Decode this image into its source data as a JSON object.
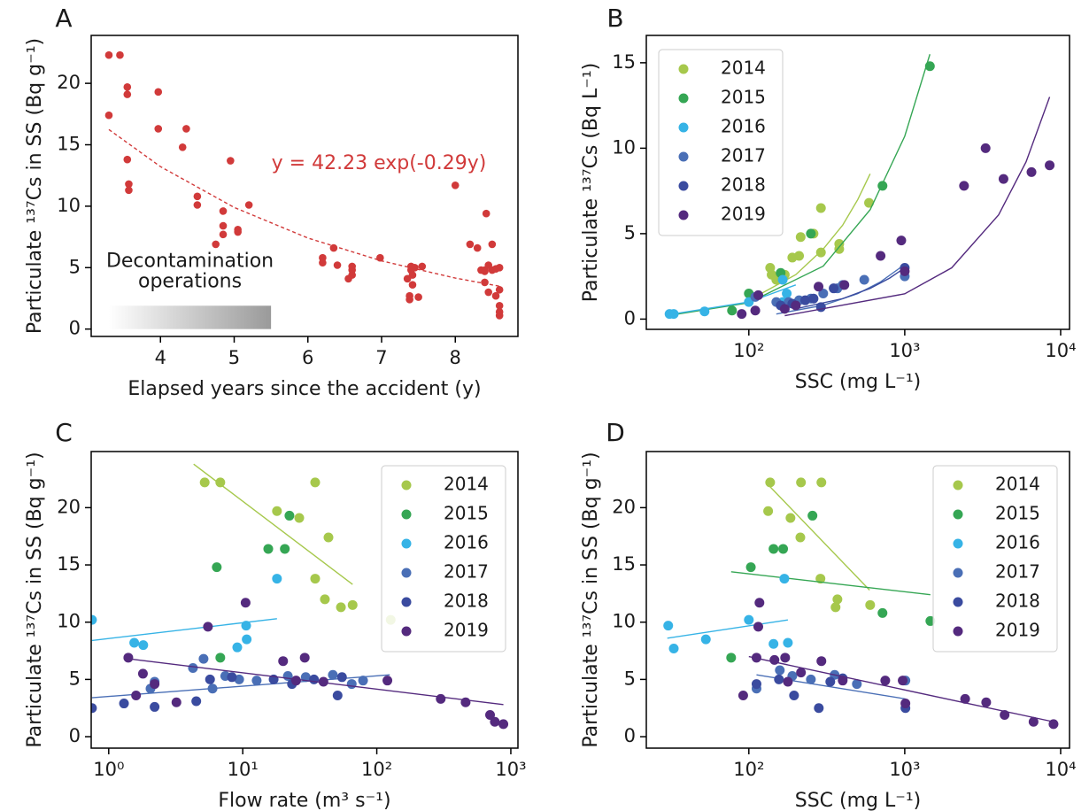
{
  "chart_data": [
    {
      "type": "scatter",
      "panel": "A",
      "xlabel": "Elapsed years since the accident (y)",
      "ylabel": "Particulate ¹³⁷Cs in SS (Bq g⁻¹)",
      "xscale": "linear",
      "xlim": [
        3.06,
        8.85
      ],
      "ylim": [
        -0.6,
        23.9
      ],
      "xticks": [
        4,
        5,
        6,
        7,
        8
      ],
      "yticks": [
        0,
        5,
        10,
        15,
        20
      ],
      "legend": null,
      "annotation": "y = 42.23 exp(-0.29y)",
      "shade": {
        "x": [
          3.3,
          5.5
        ],
        "y": [
          0,
          1.9
        ],
        "text": [
          "Decontamination",
          "operations"
        ]
      },
      "series": [
        {
          "color": "#d13a3a",
          "x": [
            3.3,
            3.45,
            3.3,
            3.55,
            3.55,
            3.55,
            3.57,
            3.57,
            3.97,
            3.97,
            4.3,
            4.35,
            4.5,
            4.5,
            4.75,
            4.85,
            4.85,
            4.85,
            4.95,
            5.05,
            5.05,
            5.2,
            6.2,
            6.2,
            6.35,
            6.4,
            6.55,
            6.6,
            6.6,
            6.6,
            6.98,
            7.35,
            7.38,
            7.38,
            7.4,
            7.4,
            7.42,
            7.42,
            7.45,
            7.5,
            7.55,
            8.0,
            8.2,
            8.3,
            8.35,
            8.4,
            8.4,
            8.4,
            8.42,
            8.45,
            8.45,
            8.5,
            8.5,
            8.55,
            8.6,
            8.6,
            8.6,
            8.6,
            8.6,
            8.55
          ],
          "values": [
            22.3,
            22.3,
            17.4,
            19.7,
            19.1,
            13.8,
            11.8,
            11.3,
            19.3,
            16.3,
            14.8,
            16.3,
            10.8,
            10.1,
            6.9,
            9.6,
            8.4,
            7.7,
            13.7,
            8.1,
            7.9,
            10.1,
            5.8,
            5.4,
            6.6,
            5.2,
            4.1,
            5.1,
            4.8,
            4.4,
            5.8,
            4.1,
            2.7,
            2.4,
            5.1,
            4.8,
            4.4,
            3.6,
            5.0,
            2.6,
            5.1,
            11.7,
            6.9,
            6.6,
            4.8,
            4.8,
            3.8,
            4.7,
            9.4,
            3.0,
            5.2,
            6.9,
            4.8,
            4.9,
            5.0,
            3.2,
            1.9,
            1.4,
            1.1,
            2.7
          ],
          "fit": {
            "dashed": true,
            "x": [
              3.3,
              4,
              5,
              6,
              7,
              8,
              8.6
            ],
            "values": [
              16.24,
              13.22,
              9.9,
              7.41,
              5.55,
              4.15,
              3.49
            ]
          }
        }
      ]
    },
    {
      "type": "scatter",
      "panel": "B",
      "xlabel": "SSC (mg L⁻¹)",
      "ylabel": "Particulate ¹³⁷Cs (Bq L⁻¹)",
      "xscale": "log",
      "xlim": [
        22,
        11400
      ],
      "ylim": [
        -0.6,
        16.6
      ],
      "xticks": [
        {
          "value": 100,
          "label": "10²"
        },
        {
          "value": 1000,
          "label": "10³"
        },
        {
          "value": 10000,
          "label": "10⁴"
        }
      ],
      "yticks": [
        0,
        5,
        10,
        15
      ],
      "legend": "upper left",
      "series": [
        {
          "name": "2014",
          "color": "#a6c84c",
          "x": [
            137,
            140,
            150,
            170,
            190,
            210,
            215,
            260,
            290,
            290,
            380,
            380,
            590
          ],
          "values": [
            3.0,
            2.6,
            2.3,
            2.6,
            3.6,
            3.7,
            4.8,
            5.0,
            6.5,
            3.9,
            4.1,
            4.4,
            6.8
          ],
          "fit": {
            "x": [
              100,
              200,
              300,
              400,
              500,
              600
            ],
            "values": [
              1.1,
              2.6,
              4.1,
              5.5,
              7.0,
              8.5
            ]
          }
        },
        {
          "name": "2015",
          "color": "#35a654",
          "x": [
            78,
            100,
            160,
            250,
            720,
            1450
          ],
          "values": [
            0.5,
            1.5,
            2.7,
            5.0,
            7.8,
            14.8
          ],
          "fit": {
            "x": [
              30,
              100,
              300,
              600,
              1000,
              1450
            ],
            "values": [
              0.2,
              0.96,
              3.1,
              6.4,
              10.7,
              15.5
            ]
          }
        },
        {
          "name": "2016",
          "color": "#36b3e6",
          "x": [
            31,
            33,
            52,
            100,
            165,
            175,
            165
          ],
          "values": [
            0.3,
            0.3,
            0.45,
            1.0,
            2.3,
            1.5,
            1.0
          ],
          "fit": {
            "x": [
              30,
              100,
              200
            ],
            "values": [
              0.25,
              1.0,
              2.0
            ]
          }
        },
        {
          "name": "2017",
          "color": "#4a6fb6",
          "x": [
            110,
            150,
            180,
            210,
            250,
            300,
            370,
            400,
            550,
            1000
          ],
          "values": [
            1.3,
            1.0,
            1.0,
            1.1,
            1.2,
            1.5,
            1.8,
            2.0,
            2.3,
            2.5
          ],
          "fit": {
            "x": [
              150,
              300,
              500,
              700,
              1000
            ],
            "values": [
              0.3,
              0.81,
              1.49,
              2.18,
              3.2
            ]
          }
        },
        {
          "name": "2018",
          "color": "#3a4b9f",
          "x": [
            160,
            190,
            230,
            260,
            290,
            350,
            1000
          ],
          "values": [
            0.8,
            0.9,
            1.1,
            1.2,
            0.7,
            1.8,
            3.0
          ],
          "fit": {
            "x": [
              200,
              400,
              600,
              800,
              1000
            ],
            "values": [
              0.6,
              1.2,
              1.8,
              2.4,
              3.0
            ]
          }
        },
        {
          "name": "2019",
          "color": "#542a7e",
          "x": [
            90,
            110,
            115,
            170,
            200,
            280,
            410,
            700,
            950,
            1000,
            2400,
            3300,
            4300,
            6500,
            8500
          ],
          "values": [
            0.3,
            0.5,
            1.4,
            0.6,
            0.8,
            1.9,
            2.0,
            3.7,
            4.6,
            2.8,
            7.8,
            10.0,
            8.2,
            8.6,
            9.0
          ],
          "fit": {
            "x": [
              170,
              1000,
              2000,
              4000,
              6000,
              8500
            ],
            "values": [
              0.2,
              1.48,
              3.0,
              6.1,
              9.2,
              13.0
            ]
          }
        }
      ]
    },
    {
      "type": "scatter",
      "panel": "C",
      "xlabel": "Flow rate (m³ s⁻¹)",
      "ylabel": "Particulate ¹³⁷Cs in SS (Bq g⁻¹)",
      "xscale": "log",
      "xlim": [
        0.74,
        1130
      ],
      "ylim": [
        -1.0,
        24.9
      ],
      "xticks": [
        {
          "value": 1,
          "label": "10⁰"
        },
        {
          "value": 10,
          "label": "10¹"
        },
        {
          "value": 100,
          "label": "10²"
        },
        {
          "value": 1000,
          "label": "10³"
        }
      ],
      "yticks": [
        0,
        5,
        10,
        15,
        20
      ],
      "legend": "upper right",
      "series": [
        {
          "name": "2014",
          "color": "#a6c84c",
          "x": [
            5.2,
            6.8,
            18,
            26.4,
            34.7,
            34.7,
            43.6,
            41,
            54,
            66,
            127
          ],
          "values": [
            22.2,
            22.2,
            19.7,
            19.1,
            22.2,
            13.8,
            17.4,
            12.0,
            11.3,
            11.5,
            10.2
          ],
          "fit": {
            "x": [
              4.3,
              66
            ],
            "values": [
              23.8,
              13.3
            ]
          }
        },
        {
          "name": "2015",
          "color": "#35a654",
          "x": [
            6.4,
            6.8,
            15.5,
            20.6,
            22.3
          ],
          "values": [
            14.8,
            6.9,
            16.4,
            16.4,
            19.3
          ]
        },
        {
          "name": "2016",
          "color": "#36b3e6",
          "x": [
            0.75,
            1.55,
            1.81,
            10.6,
            10.7,
            9.1,
            18
          ],
          "values": [
            10.2,
            8.2,
            8.0,
            9.7,
            8.5,
            7.8,
            13.8
          ],
          "fit": {
            "x": [
              0.75,
              18
            ],
            "values": [
              8.4,
              10.3
            ]
          }
        },
        {
          "name": "2017",
          "color": "#4a6fb6",
          "x": [
            2.05,
            2.2,
            4.25,
            5.1,
            5.95,
            7.4,
            9.4,
            12.7,
            21.7,
            29.5,
            47,
            65,
            79
          ],
          "values": [
            4.2,
            4.8,
            6.0,
            6.8,
            4.2,
            5.3,
            5.0,
            4.9,
            5.3,
            5.2,
            5.4,
            4.6,
            4.9
          ],
          "fit": {
            "x": [
              0.75,
              125
            ],
            "values": [
              3.4,
              5.4
            ]
          }
        },
        {
          "name": "2018",
          "color": "#3a4b9f",
          "x": [
            0.75,
            1.3,
            2.2,
            4.5,
            5.7,
            8.3,
            17,
            23.3,
            34,
            51,
            55
          ],
          "values": [
            2.5,
            2.9,
            2.6,
            3.1,
            5.0,
            5.2,
            5.0,
            4.6,
            5.0,
            3.6,
            5.2
          ]
        },
        {
          "name": "2019",
          "color": "#542a7e",
          "x": [
            1.4,
            1.6,
            1.8,
            2.2,
            3.2,
            5.5,
            10.5,
            20,
            25,
            29,
            40,
            120,
            300,
            460,
            700,
            760,
            880
          ],
          "values": [
            6.9,
            3.6,
            5.5,
            4.6,
            3.0,
            9.6,
            11.7,
            6.6,
            4.9,
            6.9,
            4.8,
            4.9,
            3.3,
            3.0,
            1.9,
            1.3,
            1.1
          ],
          "fit": {
            "x": [
              1.4,
              880
            ],
            "values": [
              6.8,
              2.8
            ]
          }
        }
      ]
    },
    {
      "type": "scatter",
      "panel": "D",
      "xlabel": "SSC (mg L⁻¹)",
      "ylabel": "Particulate ¹³⁷Cs in SS (Bq g⁻¹)",
      "xscale": "log",
      "xlim": [
        22,
        11400
      ],
      "ylim": [
        -1.0,
        24.9
      ],
      "xticks": [
        {
          "value": 100,
          "label": "10²"
        },
        {
          "value": 1000,
          "label": "10³"
        },
        {
          "value": 10000,
          "label": "10⁴"
        }
      ],
      "yticks": [
        0,
        5,
        10,
        15,
        20
      ],
      "legend": "upper right",
      "series": [
        {
          "name": "2014",
          "color": "#a6c84c",
          "x": [
            137,
            133,
            185,
            216,
            214,
            292,
            288,
            370,
            360,
            600
          ],
          "values": [
            22.2,
            19.7,
            19.1,
            22.2,
            17.4,
            22.2,
            13.8,
            12.0,
            11.3,
            11.5
          ],
          "fit": {
            "x": [
              133,
              595
            ],
            "values": [
              22.0,
              12.8
            ]
          }
        },
        {
          "name": "2015",
          "color": "#35a654",
          "x": [
            77,
            103,
            144,
            166,
            256,
            720,
            1460
          ],
          "values": [
            6.9,
            14.8,
            16.4,
            16.4,
            19.3,
            10.8,
            10.1
          ],
          "fit": {
            "x": [
              77,
              1460
            ],
            "values": [
              14.4,
              12.4
            ]
          }
        },
        {
          "name": "2016",
          "color": "#36b3e6",
          "x": [
            30.4,
            33,
            53,
            100,
            144,
            169,
            178
          ],
          "values": [
            9.7,
            7.7,
            8.5,
            10.2,
            8.1,
            13.8,
            8.2
          ],
          "fit": {
            "x": [
              30,
              178
            ],
            "values": [
              8.6,
              10.2
            ]
          }
        },
        {
          "name": "2017",
          "color": "#4a6fb6",
          "x": [
            112,
            158,
            190,
            250,
            355,
            493,
            1010
          ],
          "values": [
            4.2,
            5.8,
            5.3,
            5.0,
            5.4,
            4.6,
            4.9
          ],
          "fit": {
            "x": [
              112,
              1010
            ],
            "values": [
              5.4,
              3.3
            ]
          }
        },
        {
          "name": "2018",
          "color": "#3a4b9f",
          "x": [
            112,
            156,
            195,
            281,
            333,
            400,
            1010
          ],
          "values": [
            4.6,
            5.0,
            3.6,
            2.5,
            4.8,
            5.1,
            2.5
          ]
        },
        {
          "name": "2019",
          "color": "#542a7e",
          "x": [
            92,
            112,
            115,
            117,
            146,
            171,
            178,
            216,
            292,
            400,
            750,
            970,
            1010,
            2440,
            3330,
            4370,
            6700,
            9000
          ],
          "values": [
            3.6,
            6.9,
            9.6,
            11.7,
            6.7,
            6.9,
            4.8,
            5.6,
            6.6,
            4.9,
            4.9,
            4.9,
            2.9,
            3.3,
            3.0,
            1.9,
            1.3,
            1.1
          ],
          "fit": {
            "x": [
              100,
              9000
            ],
            "values": [
              7.0,
              1.3
            ]
          }
        }
      ]
    }
  ]
}
